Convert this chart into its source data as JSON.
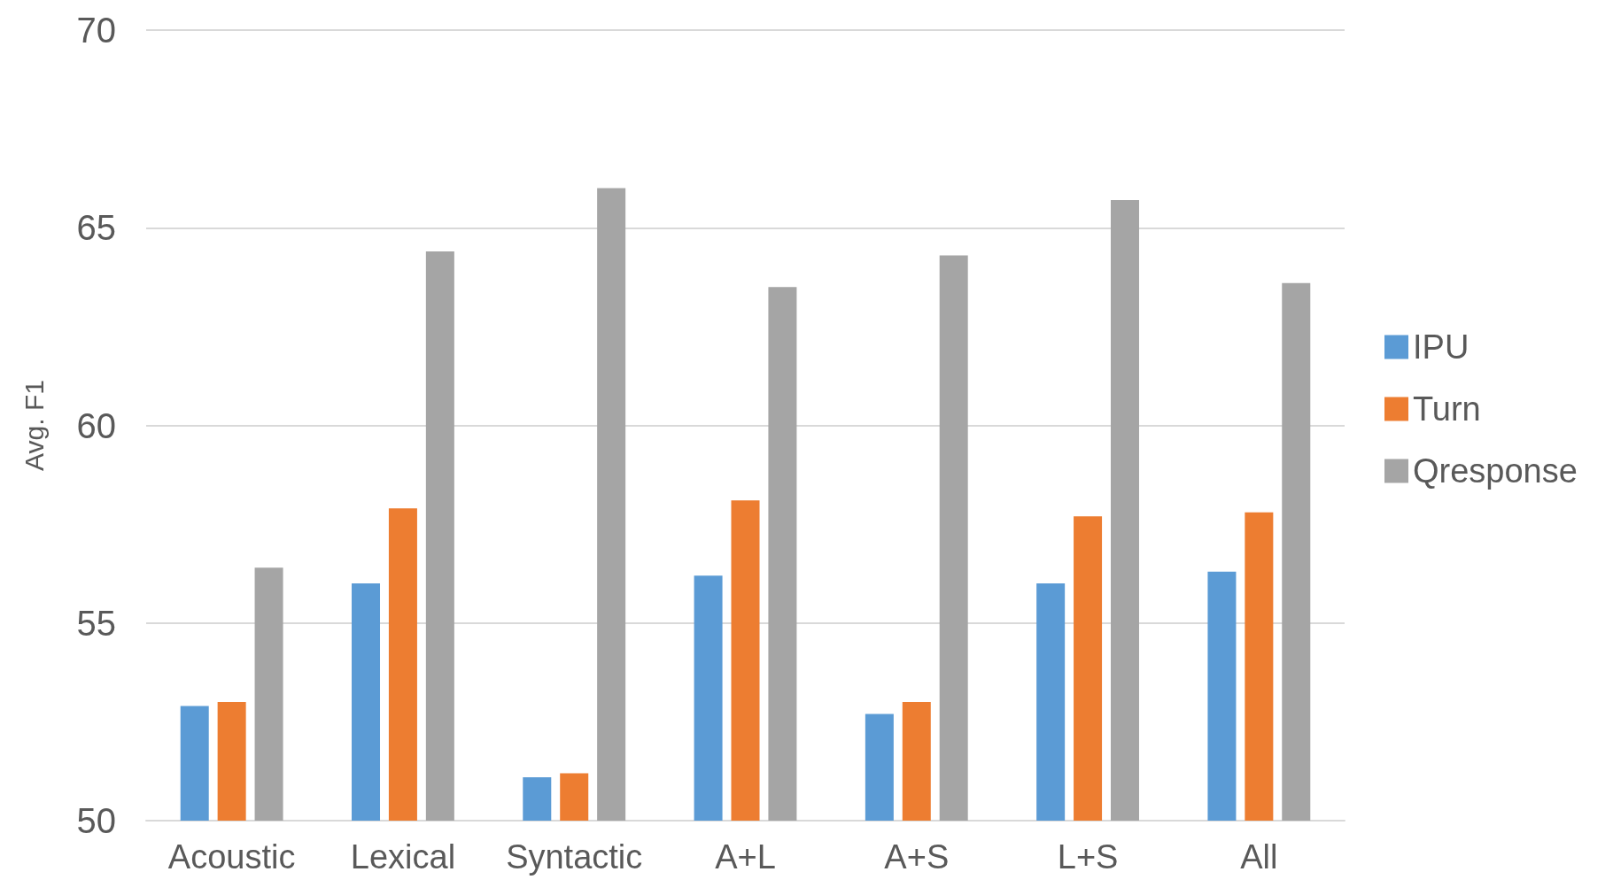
{
  "chart_data": {
    "type": "bar",
    "ylabel": "Avg. F1",
    "categories": [
      "Acoustic",
      "Lexical",
      "Syntactic",
      "A+L",
      "A+S",
      "L+S",
      "All"
    ],
    "series": [
      {
        "name": "IPU",
        "color": "#5b9bd5",
        "values": [
          52.9,
          56.0,
          51.1,
          56.2,
          52.7,
          56.0,
          56.3
        ]
      },
      {
        "name": "Turn",
        "color": "#ed7d31",
        "values": [
          53.0,
          57.9,
          51.2,
          58.1,
          53.0,
          57.7,
          57.8
        ]
      },
      {
        "name": "Qresponse",
        "color": "#a5a5a5",
        "values": [
          56.4,
          64.4,
          66.0,
          63.5,
          64.3,
          65.7,
          63.6
        ]
      }
    ],
    "ylim": [
      50,
      70
    ],
    "yticks": [
      50,
      55,
      60,
      65,
      70
    ],
    "grid": "y",
    "legend": "right"
  }
}
